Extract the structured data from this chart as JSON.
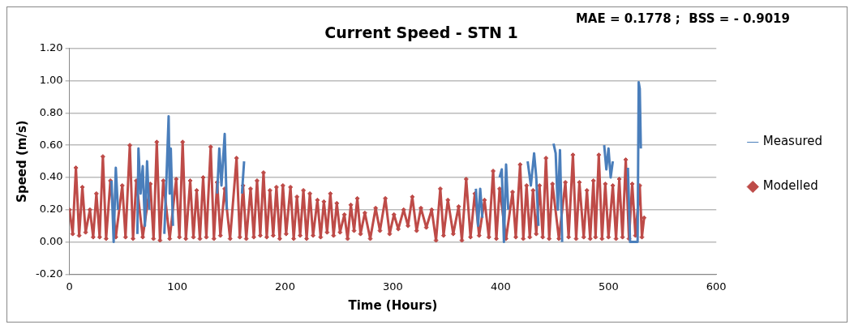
{
  "chart_data": {
    "type": "line",
    "title": "Current Speed - STN 1",
    "xlabel": "Time (Hours)",
    "ylabel": "Speed (m/s)",
    "annotations": [
      "MAE = 0.1778 ;  BSS = - 0.9019"
    ],
    "xlim": [
      0,
      600
    ],
    "xticks": [
      0,
      100,
      200,
      300,
      400,
      500,
      600
    ],
    "ylim": [
      -0.2,
      1.2
    ],
    "yticks": [
      {
        "value": -0.2,
        "label": "-0.20"
      },
      {
        "value": 0,
        "label": "0.00"
      },
      {
        "value": 0.2,
        "label": "0.20"
      },
      {
        "value": 0.4,
        "label": "0.40"
      },
      {
        "value": 0.6,
        "label": "0.60"
      },
      {
        "value": 0.8,
        "label": "0.80"
      },
      {
        "value": 1,
        "label": "1.00"
      },
      {
        "value": 1.2,
        "label": "1.20"
      }
    ],
    "grid": "y",
    "legend": "right",
    "series": [
      {
        "name": "Measured",
        "color": "#4a7ebb",
        "marker": "none",
        "x": [
          39,
          41,
          43,
          45,
          47,
          63,
          64,
          66,
          68,
          70,
          72,
          74,
          77,
          88,
          90,
          92,
          93,
          94,
          96,
          98,
          137,
          139,
          141,
          144,
          146,
          148,
          160,
          162,
          165,
          377,
          379,
          381,
          383,
          386,
          399,
          401,
          403,
          405,
          407,
          410,
          425,
          428,
          431,
          433,
          435,
          438,
          449,
          451,
          453,
          455,
          457,
          460,
          496,
          498,
          500,
          502,
          504,
          507,
          518,
          520,
          524,
          527,
          528,
          529,
          530
        ],
        "values": [
          0.38,
          0,
          0.46,
          0.2,
          null,
          0.05,
          0.58,
          0.3,
          0.47,
          0.1,
          0.5,
          0.2,
          null,
          0.05,
          0.4,
          0.78,
          0.3,
          0.58,
          0.1,
          null,
          0.3,
          0.58,
          0.35,
          0.67,
          0.2,
          null,
          0.3,
          0.5,
          null,
          0.33,
          0.1,
          0.33,
          0.15,
          null,
          0.4,
          0.45,
          0,
          0.48,
          0.2,
          null,
          0.5,
          0.35,
          0.55,
          0.4,
          0.1,
          null,
          0.61,
          0.55,
          0.2,
          0.57,
          0,
          null,
          0.6,
          0.45,
          0.58,
          0.4,
          0.5,
          null,
          0.46,
          0,
          0,
          0,
          0.99,
          0.95,
          0.58
        ]
      },
      {
        "name": "Modelled",
        "color": "#be4b48",
        "marker": "diamond",
        "x": [
          0,
          3,
          6,
          9,
          12,
          15,
          19,
          22,
          25,
          28,
          31,
          34,
          38,
          43,
          49,
          52,
          56,
          59,
          62,
          68,
          75,
          78,
          81,
          84,
          87,
          93,
          99,
          102,
          105,
          108,
          112,
          115,
          118,
          121,
          124,
          127,
          131,
          134,
          137,
          140,
          144,
          149,
          155,
          158,
          161,
          164,
          168,
          171,
          174,
          177,
          180,
          183,
          186,
          189,
          192,
          195,
          198,
          201,
          205,
          208,
          211,
          214,
          217,
          220,
          223,
          226,
          230,
          233,
          236,
          239,
          242,
          245,
          248,
          251,
          255,
          258,
          261,
          264,
          267,
          270,
          274,
          279,
          284,
          288,
          293,
          297,
          301,
          305,
          310,
          314,
          318,
          322,
          326,
          331,
          336,
          340,
          344,
          347,
          351,
          356,
          361,
          364,
          368,
          372,
          376,
          380,
          385,
          389,
          393,
          396,
          399,
          405,
          411,
          414,
          418,
          421,
          424,
          427,
          430,
          433,
          436,
          439,
          442,
          445,
          448,
          454,
          460,
          463,
          467,
          470,
          473,
          477,
          480,
          483,
          486,
          488,
          491,
          494,
          497,
          500,
          504,
          507,
          510,
          513,
          516,
          519,
          522,
          525,
          529,
          531,
          533
        ],
        "values": [
          0.2,
          0.05,
          0.46,
          0.04,
          0.34,
          0.06,
          0.2,
          0.03,
          0.3,
          0.03,
          0.53,
          0.02,
          0.38,
          0.03,
          0.35,
          0.03,
          0.6,
          0.02,
          0.38,
          0.03,
          0.36,
          0.02,
          0.62,
          0.01,
          0.38,
          0.02,
          0.39,
          0.03,
          0.62,
          0.02,
          0.38,
          0.03,
          0.32,
          0.02,
          0.4,
          0.03,
          0.59,
          0.02,
          0.37,
          0.04,
          0.33,
          0.02,
          0.52,
          0.03,
          0.35,
          0.02,
          0.33,
          0.03,
          0.38,
          0.04,
          0.43,
          0.03,
          0.32,
          0.04,
          0.34,
          0.02,
          0.35,
          0.05,
          0.34,
          0.02,
          0.28,
          0.04,
          0.32,
          0.02,
          0.3,
          0.04,
          0.26,
          0.03,
          0.25,
          0.06,
          0.3,
          0.04,
          0.24,
          0.06,
          0.17,
          0.02,
          0.23,
          0.07,
          0.27,
          0.05,
          0.18,
          0.02,
          0.21,
          0.07,
          0.27,
          0.05,
          0.17,
          0.08,
          0.2,
          0.1,
          0.28,
          0.07,
          0.21,
          0.09,
          0.2,
          0.01,
          0.33,
          0.04,
          0.26,
          0.05,
          0.22,
          0.01,
          0.39,
          0.03,
          0.3,
          0.04,
          0.26,
          0.03,
          0.44,
          0.02,
          0.33,
          0.02,
          0.31,
          0.03,
          0.48,
          0.02,
          0.35,
          0.03,
          0.32,
          0.05,
          0.35,
          0.03,
          0.52,
          0.02,
          0.36,
          0.02,
          0.37,
          0.03,
          0.54,
          0.02,
          0.37,
          0.03,
          0.32,
          0.02,
          0.38,
          0.03,
          0.54,
          0.02,
          0.36,
          0.03,
          0.35,
          0.02,
          0.39,
          0.03,
          0.51,
          0.02,
          0.36,
          0.04,
          0.35,
          0.03,
          0.15
        ]
      }
    ]
  }
}
